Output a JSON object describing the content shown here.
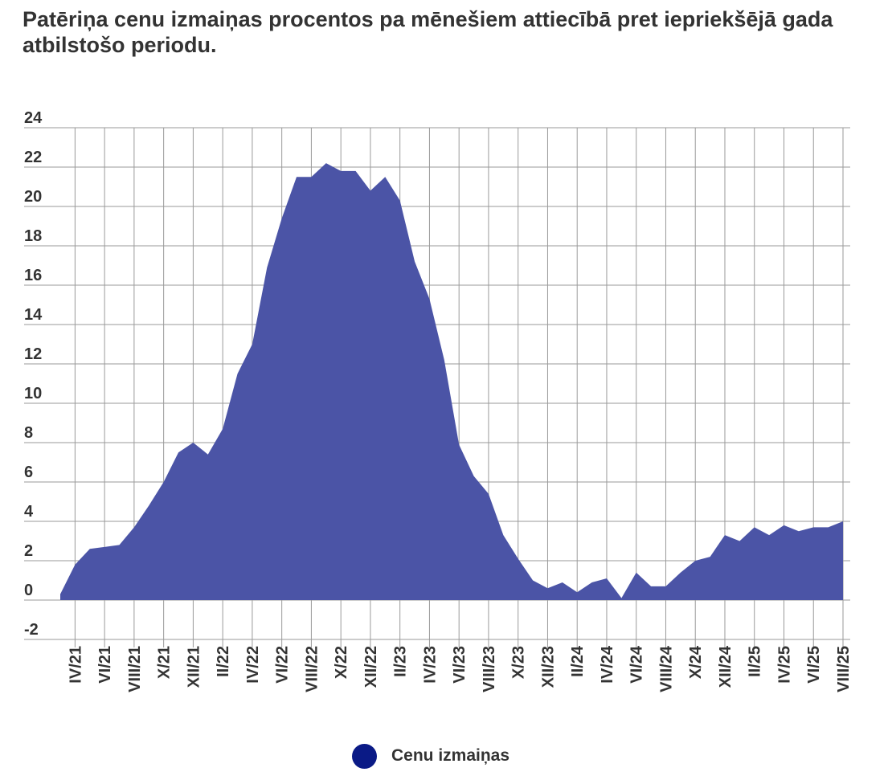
{
  "title": "Patēriņa cenu izmaiņas procentos pa mēnešiem attiecībā pret iepriekšējā gada atbilstošo periodu.",
  "colors": {
    "area": "#4b54a6",
    "legend_dot": "#0a1a86",
    "grid": "#9a9a9a"
  },
  "legend": {
    "label": "Cenu izmaiņas"
  },
  "chart_data": {
    "type": "area",
    "title": "Patēriņa cenu izmaiņas procentos pa mēnešiem attiecībā pret iepriekšējā gada atbilstošo periodu.",
    "xlabel": "",
    "ylabel": "",
    "ylim": [
      -2,
      24
    ],
    "y_ticks": [
      -2,
      0,
      2,
      4,
      6,
      8,
      10,
      12,
      14,
      16,
      18,
      20,
      22,
      24
    ],
    "x_tick_labels": [
      "IV/21",
      "VI/21",
      "VIII/21",
      "X/21",
      "XII/21",
      "II/22",
      "IV/22",
      "VI/22",
      "VIII/22",
      "X/22",
      "XII/22",
      "II/23",
      "IV/23",
      "VI/23",
      "VIII/23",
      "X/23",
      "XII/23",
      "II/24",
      "IV/24",
      "VI/24",
      "VIII/24",
      "X/24",
      "XII/24",
      "II/25",
      "IV/25",
      "VI/25",
      "VIII/25"
    ],
    "grid": true,
    "legend_position": "bottom",
    "categories": [
      "III/21",
      "IV/21",
      "V/21",
      "VI/21",
      "VII/21",
      "VIII/21",
      "IX/21",
      "X/21",
      "XI/21",
      "XII/21",
      "I/22",
      "II/22",
      "III/22",
      "IV/22",
      "V/22",
      "VI/22",
      "VII/22",
      "VIII/22",
      "IX/22",
      "X/22",
      "XI/22",
      "XII/22",
      "I/23",
      "II/23",
      "III/23",
      "IV/23",
      "V/23",
      "VI/23",
      "VII/23",
      "VIII/23",
      "IX/23",
      "X/23",
      "XI/23",
      "XII/23",
      "I/24",
      "II/24",
      "III/24",
      "IV/24",
      "V/24",
      "VI/24",
      "VII/24",
      "VIII/24",
      "IX/24",
      "X/24",
      "XI/24",
      "XII/24",
      "I/25",
      "II/25",
      "III/25",
      "IV/25",
      "V/25",
      "VI/25",
      "VII/25",
      "VIII/25"
    ],
    "series": [
      {
        "name": "Cenu izmaiņas",
        "values": [
          0.3,
          1.8,
          2.6,
          2.7,
          2.8,
          3.7,
          4.8,
          6.0,
          7.5,
          8.0,
          7.4,
          8.7,
          11.5,
          13.0,
          16.9,
          19.4,
          21.5,
          21.5,
          22.2,
          21.8,
          21.8,
          20.8,
          21.5,
          20.3,
          17.2,
          15.3,
          12.2,
          7.9,
          6.3,
          5.4,
          3.3,
          2.1,
          1.0,
          0.6,
          0.9,
          0.4,
          0.9,
          1.1,
          0.1,
          1.4,
          0.7,
          0.7,
          1.4,
          2.0,
          2.2,
          3.3,
          3.0,
          3.7,
          3.3,
          3.8,
          3.5,
          3.7,
          3.7,
          4.0
        ]
      }
    ]
  }
}
